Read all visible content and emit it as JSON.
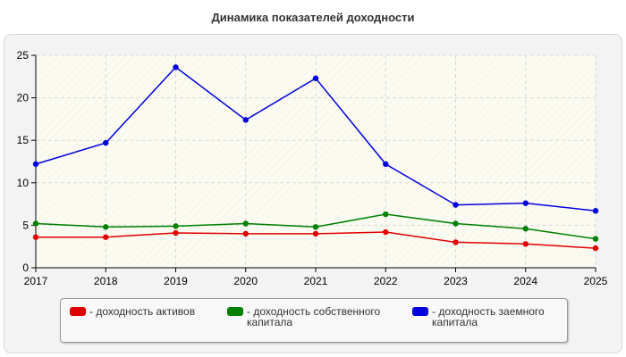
{
  "page": {
    "title": "Динамика показателей доходности"
  },
  "colors": {
    "assets": "#e00000",
    "equity": "#008000",
    "borrowed": "#0000dd",
    "grid": "#d9d9d9",
    "axis": "#000000"
  },
  "chart_data": {
    "type": "line",
    "title": "Динамика показателей доходности",
    "xlabel": "",
    "ylabel": "",
    "x": [
      "2017",
      "2018",
      "2019",
      "2020",
      "2021",
      "2022",
      "2023",
      "2024",
      "2025"
    ],
    "ylim": [
      0,
      25
    ],
    "yticks": [
      "0",
      "5",
      "10",
      "15",
      "20",
      "25"
    ],
    "grid": true,
    "legend_position": "bottom",
    "series": [
      {
        "key": "assets",
        "name": "- доходность активов",
        "values": [
          3.6,
          3.6,
          4.1,
          4.0,
          4.0,
          4.2,
          3.0,
          2.8,
          2.3
        ]
      },
      {
        "key": "equity",
        "name": "- доходность собственного капитала",
        "values": [
          5.2,
          4.8,
          4.9,
          5.2,
          4.8,
          6.3,
          5.2,
          4.6,
          3.4
        ]
      },
      {
        "key": "borrowed",
        "name": "- доходность заемного капитала",
        "values": [
          12.2,
          14.7,
          23.6,
          17.4,
          22.3,
          12.2,
          7.4,
          7.6,
          6.7
        ]
      }
    ]
  }
}
